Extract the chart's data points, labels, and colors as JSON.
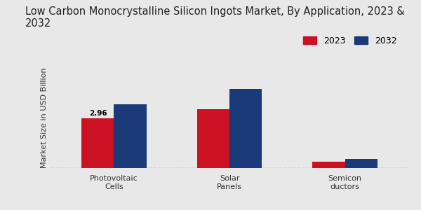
{
  "title": "Low Carbon Monocrystalline Silicon Ingots Market, By Application, 2023 &\n2032",
  "ylabel": "Market Size in USD Billion",
  "categories": [
    "Photovoltaic\nCells",
    "Solar\nPanels",
    "Semicon\nductors"
  ],
  "values_2023": [
    2.96,
    3.5,
    0.38
  ],
  "values_2032": [
    3.8,
    4.7,
    0.55
  ],
  "color_2023": "#cc1122",
  "color_2032": "#1a3a7a",
  "background_color": "#e8e8e8",
  "annotation_value": "2.96",
  "annotation_category_idx": 0,
  "legend_labels": [
    "2023",
    "2032"
  ],
  "ylim": [
    0,
    6.0
  ],
  "bar_width": 0.28,
  "title_fontsize": 10.5,
  "axis_label_fontsize": 8,
  "tick_fontsize": 8,
  "legend_fontsize": 9
}
